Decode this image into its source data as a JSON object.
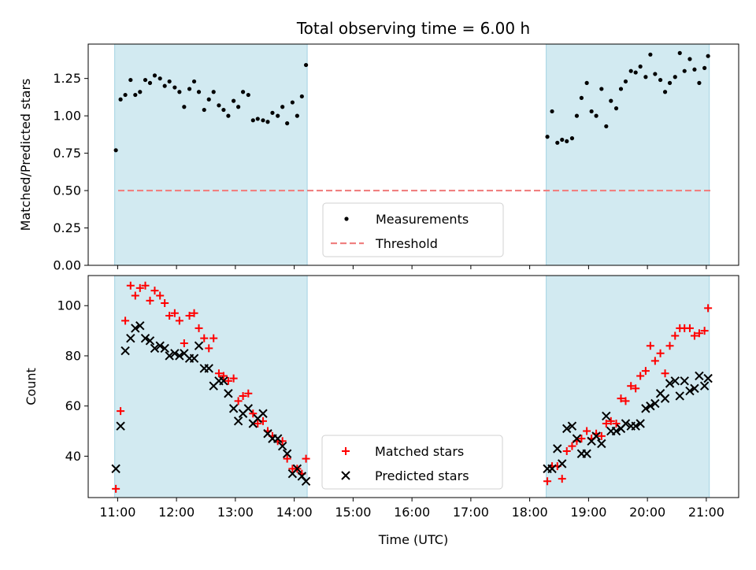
{
  "figure": {
    "title": "Total observing time = 6.00 h",
    "xlabel": "Time (UTC)"
  },
  "colors": {
    "shade": "#add8e6",
    "threshold": "#f08080",
    "matched": "#ff0000",
    "predicted": "#000000",
    "measurement": "#000000"
  },
  "chart_data": [
    {
      "type": "scatter",
      "title": "Total observing time = 6.00 h",
      "ylabel": "Matched/Predicted stars",
      "xlabel": "",
      "x_unit": "hours UTC",
      "xlim": [
        10.5,
        21.55
      ],
      "ylim": [
        0.0,
        1.48
      ],
      "yticks": [
        0.0,
        0.25,
        0.5,
        0.75,
        1.0,
        1.25
      ],
      "ytick_labels": [
        "0.00",
        "0.25",
        "0.50",
        "0.75",
        "1.00",
        "1.25"
      ],
      "shaded_intervals": [
        [
          10.95,
          14.22
        ],
        [
          18.28,
          21.05
        ]
      ],
      "threshold": {
        "name": "Threshold",
        "y": 0.5,
        "style": "dashed"
      },
      "legend": {
        "position": "lower center",
        "entries": [
          "Measurements",
          "Threshold"
        ]
      },
      "series": [
        {
          "name": "Measurements",
          "x": [
            10.97,
            11.05,
            11.13,
            11.22,
            11.3,
            11.38,
            11.47,
            11.55,
            11.63,
            11.72,
            11.8,
            11.88,
            11.97,
            12.05,
            12.13,
            12.22,
            12.3,
            12.38,
            12.47,
            12.55,
            12.63,
            12.72,
            12.8,
            12.88,
            12.97,
            13.05,
            13.13,
            13.22,
            13.3,
            13.38,
            13.47,
            13.55,
            13.63,
            13.72,
            13.8,
            13.88,
            13.97,
            14.05,
            14.13,
            14.2,
            18.3,
            18.38,
            18.47,
            18.55,
            18.63,
            18.72,
            18.8,
            18.88,
            18.97,
            19.05,
            19.13,
            19.22,
            19.3,
            19.38,
            19.47,
            19.55,
            19.63,
            19.72,
            19.8,
            19.88,
            19.97,
            20.05,
            20.13,
            20.22,
            20.3,
            20.38,
            20.47,
            20.55,
            20.63,
            20.72,
            20.8,
            20.88,
            20.97,
            21.03
          ],
          "y": [
            0.77,
            1.11,
            1.14,
            1.24,
            1.14,
            1.16,
            1.24,
            1.22,
            1.27,
            1.25,
            1.2,
            1.23,
            1.19,
            1.16,
            1.06,
            1.18,
            1.23,
            1.16,
            1.04,
            1.11,
            1.16,
            1.07,
            1.04,
            1.0,
            1.1,
            1.06,
            1.16,
            1.14,
            0.97,
            0.98,
            0.97,
            0.96,
            1.02,
            1.0,
            1.06,
            0.95,
            1.09,
            1.0,
            1.13,
            1.34,
            0.86,
            1.03,
            0.82,
            0.84,
            0.83,
            0.85,
            1.0,
            1.12,
            1.22,
            1.03,
            1.0,
            1.18,
            0.93,
            1.1,
            1.05,
            1.18,
            1.23,
            1.3,
            1.29,
            1.33,
            1.26,
            1.41,
            1.28,
            1.24,
            1.16,
            1.22,
            1.26,
            1.42,
            1.3,
            1.38,
            1.31,
            1.22,
            1.32,
            1.4
          ]
        }
      ]
    },
    {
      "type": "scatter",
      "title": "",
      "ylabel": "Count",
      "xlabel": "Time (UTC)",
      "x_unit": "hours UTC",
      "xlim": [
        10.5,
        21.55
      ],
      "ylim": [
        23.5,
        112
      ],
      "yticks": [
        40,
        60,
        80,
        100
      ],
      "ytick_labels": [
        "40",
        "60",
        "80",
        "100"
      ],
      "xticks": [
        11,
        12,
        13,
        14,
        15,
        16,
        17,
        18,
        19,
        20,
        21
      ],
      "xtick_labels": [
        "11:00",
        "12:00",
        "13:00",
        "14:00",
        "15:00",
        "16:00",
        "17:00",
        "18:00",
        "19:00",
        "20:00",
        "21:00"
      ],
      "shaded_intervals": [
        [
          10.95,
          14.22
        ],
        [
          18.28,
          21.05
        ]
      ],
      "legend": {
        "position": "lower center",
        "entries": [
          "Matched stars",
          "Predicted stars"
        ]
      },
      "series": [
        {
          "name": "Matched stars",
          "marker": "plus",
          "x": [
            10.97,
            11.05,
            11.13,
            11.22,
            11.3,
            11.38,
            11.47,
            11.55,
            11.63,
            11.72,
            11.8,
            11.88,
            11.97,
            12.05,
            12.13,
            12.22,
            12.3,
            12.38,
            12.47,
            12.55,
            12.63,
            12.72,
            12.8,
            12.88,
            12.97,
            13.05,
            13.13,
            13.22,
            13.3,
            13.38,
            13.47,
            13.55,
            13.63,
            13.72,
            13.8,
            13.88,
            13.97,
            14.05,
            14.13,
            14.2,
            18.3,
            18.38,
            18.47,
            18.55,
            18.63,
            18.72,
            18.8,
            18.88,
            18.97,
            19.05,
            19.13,
            19.22,
            19.3,
            19.38,
            19.47,
            19.55,
            19.63,
            19.72,
            19.8,
            19.88,
            19.97,
            20.05,
            20.13,
            20.22,
            20.3,
            20.38,
            20.47,
            20.55,
            20.63,
            20.72,
            20.8,
            20.88,
            20.97,
            21.03
          ],
          "y": [
            27,
            58,
            94,
            108,
            104,
            107,
            108,
            102,
            106,
            104,
            101,
            96,
            97,
            94,
            85,
            96,
            97,
            91,
            87,
            83,
            87,
            73,
            72,
            70,
            71,
            62,
            64,
            65,
            57,
            53,
            54,
            50,
            48,
            46,
            46,
            39,
            35,
            35,
            33,
            39,
            30,
            36,
            36,
            31,
            42,
            44,
            46,
            47,
            50,
            47,
            49,
            48,
            53,
            54,
            53,
            63,
            62,
            68,
            67,
            72,
            74,
            84,
            78,
            81,
            73,
            84,
            88,
            91,
            91,
            91,
            88,
            89,
            90,
            99
          ]
        },
        {
          "name": "Predicted stars",
          "marker": "x",
          "x": [
            10.97,
            11.05,
            11.13,
            11.22,
            11.3,
            11.38,
            11.47,
            11.55,
            11.63,
            11.72,
            11.8,
            11.88,
            11.97,
            12.05,
            12.13,
            12.22,
            12.3,
            12.38,
            12.47,
            12.55,
            12.63,
            12.72,
            12.8,
            12.88,
            12.97,
            13.05,
            13.13,
            13.22,
            13.3,
            13.38,
            13.47,
            13.55,
            13.63,
            13.72,
            13.8,
            13.88,
            13.97,
            14.05,
            14.13,
            14.2,
            18.3,
            18.38,
            18.47,
            18.55,
            18.63,
            18.72,
            18.8,
            18.88,
            18.97,
            19.05,
            19.13,
            19.22,
            19.3,
            19.38,
            19.47,
            19.55,
            19.63,
            19.72,
            19.8,
            19.88,
            19.97,
            20.05,
            20.13,
            20.22,
            20.3,
            20.38,
            20.47,
            20.55,
            20.63,
            20.72,
            20.8,
            20.88,
            20.97,
            21.03
          ],
          "y": [
            35,
            52,
            82,
            87,
            91,
            92,
            87,
            86,
            83,
            84,
            83,
            80,
            81,
            80,
            81,
            79,
            79,
            84,
            75,
            75,
            68,
            70,
            70,
            65,
            59,
            54,
            57,
            59,
            53,
            55,
            57,
            49,
            47,
            47,
            44,
            41,
            33,
            35,
            32,
            30,
            35,
            35,
            43,
            37,
            51,
            52,
            47,
            41,
            41,
            46,
            48,
            45,
            56,
            50,
            50,
            51,
            53,
            52,
            52,
            53,
            59,
            60,
            61,
            65,
            63,
            69,
            70,
            64,
            70,
            66,
            67,
            72,
            68,
            71
          ]
        }
      ]
    }
  ]
}
